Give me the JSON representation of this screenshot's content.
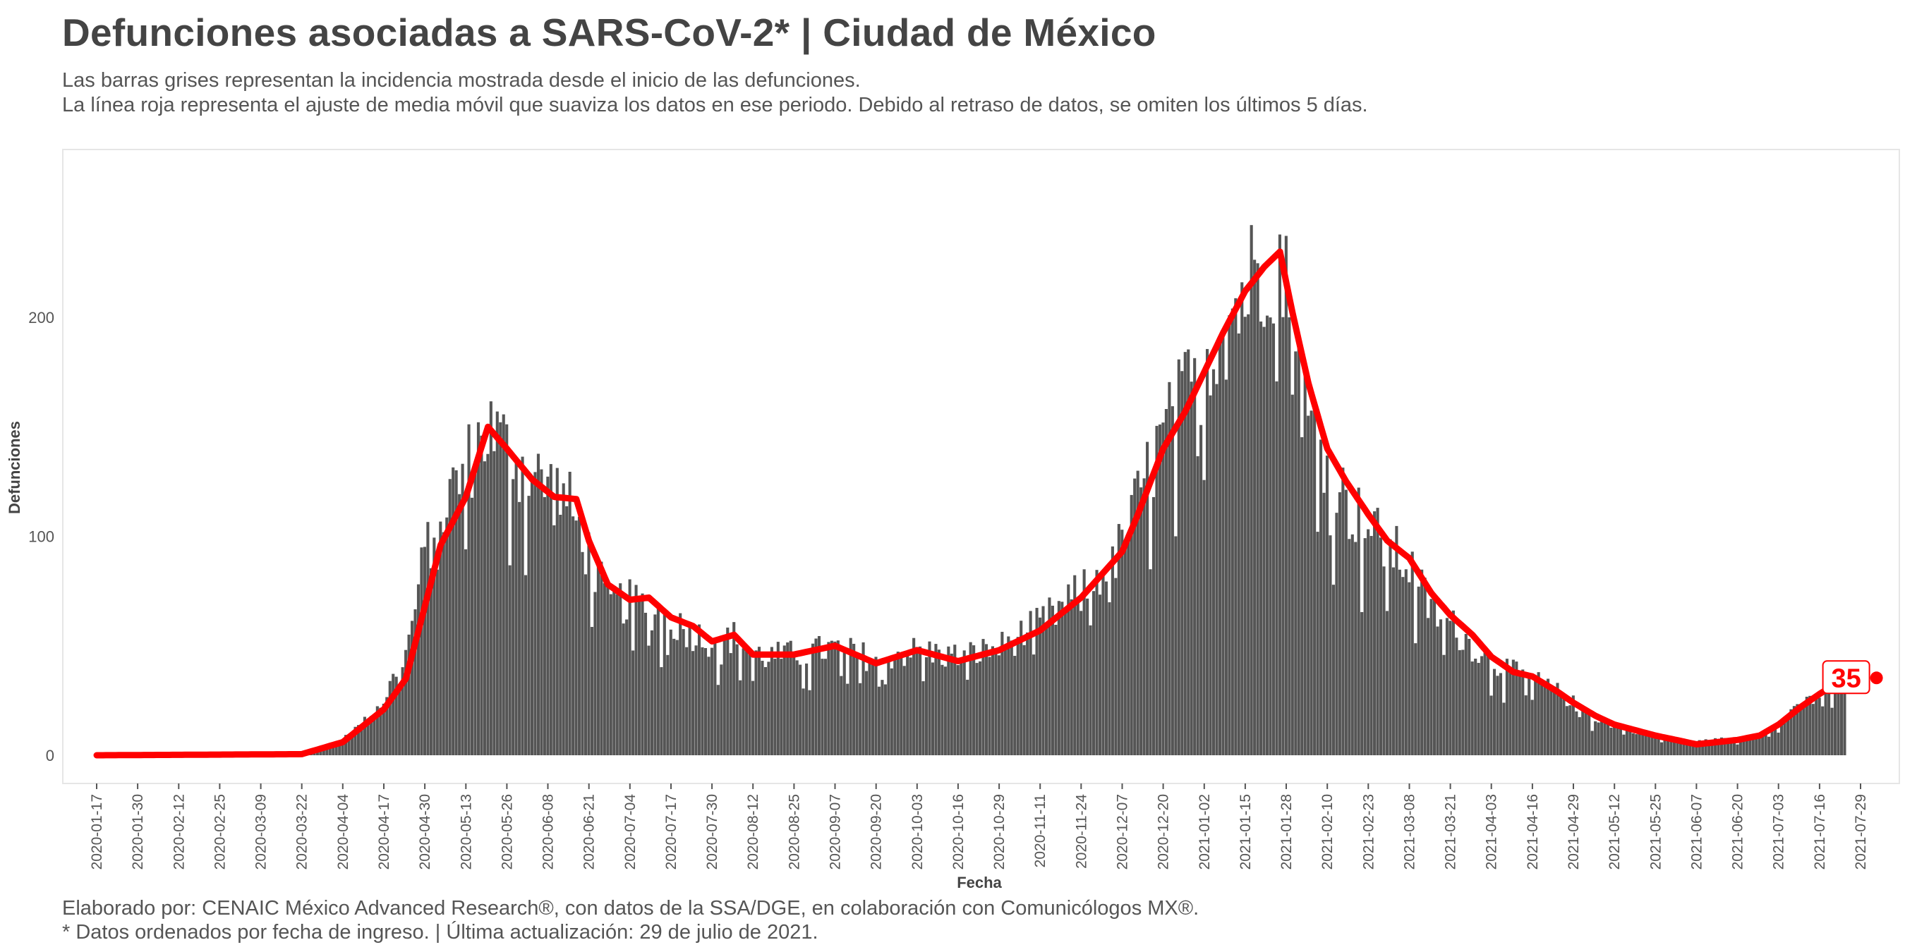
{
  "title": "Defunciones asociadas a SARS-CoV-2* | Ciudad de México",
  "subtitle_1": "Las barras grises representan la incidencia mostrada desde el inicio de las defunciones.",
  "subtitle_2": "La línea roja representa el ajuste de media móvil que suaviza los datos en ese periodo. Debido al retraso de datos, se omiten los últimos 5 días.",
  "caption_1": "Elaborado por: CENAIC México Advanced Research®, con datos de la SSA/DGE, en colaboración con Comunicólogos MX®.",
  "caption_2": "* Datos ordenados por fecha de ingreso. | Última actualización: 29 de julio de 2021.",
  "chart_data": {
    "type": "bar",
    "xlabel": "Fecha",
    "ylabel": "Defunciones",
    "ylim": [
      -12,
      265
    ],
    "y_ticks": [
      0,
      100,
      200
    ],
    "x_range": [
      "2020-01-17",
      "2021-07-29"
    ],
    "x_ticks": [
      "2020-01-17",
      "2020-01-30",
      "2020-02-12",
      "2020-02-25",
      "2020-03-09",
      "2020-03-22",
      "2020-04-04",
      "2020-04-17",
      "2020-04-30",
      "2020-05-13",
      "2020-05-26",
      "2020-06-08",
      "2020-06-21",
      "2020-07-04",
      "2020-07-17",
      "2020-07-30",
      "2020-08-12",
      "2020-08-25",
      "2020-09-07",
      "2020-09-20",
      "2020-10-03",
      "2020-10-16",
      "2020-10-29",
      "2020-11-11",
      "2020-11-24",
      "2020-12-07",
      "2020-12-20",
      "2021-01-02",
      "2021-01-15",
      "2021-01-28",
      "2021-02-10",
      "2021-02-23",
      "2021-03-08",
      "2021-03-21",
      "2021-04-03",
      "2021-04-16",
      "2021-04-29",
      "2021-05-12",
      "2021-05-25",
      "2021-06-07",
      "2021-06-20",
      "2021-07-03",
      "2021-07-16",
      "2021-07-29"
    ],
    "grid": false,
    "legend": "none",
    "bar_color": "#555555",
    "line_color": "#ff0000",
    "series": [
      {
        "kind": "bars",
        "anchors": [
          [
            "2020-01-17",
            0
          ],
          [
            "2020-03-09",
            0
          ],
          [
            "2020-03-22",
            1
          ],
          [
            "2020-04-01",
            5
          ],
          [
            "2020-04-10",
            14
          ],
          [
            "2020-04-17",
            25
          ],
          [
            "2020-04-25",
            52
          ],
          [
            "2020-04-30",
            92
          ],
          [
            "2020-05-06",
            113
          ],
          [
            "2020-05-13",
            132
          ],
          [
            "2020-05-20",
            150
          ],
          [
            "2020-05-26",
            140
          ],
          [
            "2020-06-02",
            128
          ],
          [
            "2020-06-08",
            124
          ],
          [
            "2020-06-14",
            117
          ],
          [
            "2020-06-21",
            92
          ],
          [
            "2020-06-27",
            70
          ],
          [
            "2020-07-04",
            70
          ],
          [
            "2020-07-12",
            66
          ],
          [
            "2020-07-22",
            57
          ],
          [
            "2020-07-30",
            52
          ],
          [
            "2020-08-06",
            54
          ],
          [
            "2020-08-15",
            45
          ],
          [
            "2020-08-25",
            46
          ],
          [
            "2020-09-07",
            49
          ],
          [
            "2020-09-20",
            44
          ],
          [
            "2020-10-03",
            48
          ],
          [
            "2020-10-16",
            45
          ],
          [
            "2020-10-29",
            49
          ],
          [
            "2020-11-11",
            60
          ],
          [
            "2020-11-24",
            74
          ],
          [
            "2020-12-07",
            95
          ],
          [
            "2020-12-14",
            125
          ],
          [
            "2020-12-20",
            145
          ],
          [
            "2021-01-02",
            180
          ],
          [
            "2021-01-08",
            198
          ],
          [
            "2021-01-15",
            212
          ],
          [
            "2021-01-22",
            230
          ],
          [
            "2021-01-26",
            232
          ],
          [
            "2021-01-30",
            192
          ],
          [
            "2021-02-04",
            152
          ],
          [
            "2021-02-10",
            138
          ],
          [
            "2021-02-16",
            115
          ],
          [
            "2021-02-23",
            104
          ],
          [
            "2021-03-01",
            95
          ],
          [
            "2021-03-08",
            87
          ],
          [
            "2021-03-15",
            66
          ],
          [
            "2021-03-21",
            60
          ],
          [
            "2021-03-28",
            50
          ],
          [
            "2021-04-03",
            43
          ],
          [
            "2021-04-10",
            38
          ],
          [
            "2021-04-16",
            35
          ],
          [
            "2021-04-24",
            29
          ],
          [
            "2021-04-29",
            24
          ],
          [
            "2021-05-06",
            17
          ],
          [
            "2021-05-12",
            14
          ],
          [
            "2021-05-25",
            9
          ],
          [
            "2021-06-07",
            6
          ],
          [
            "2021-06-20",
            8
          ],
          [
            "2021-06-27",
            9
          ],
          [
            "2021-07-03",
            14
          ],
          [
            "2021-07-10",
            22
          ],
          [
            "2021-07-16",
            28
          ],
          [
            "2021-07-24",
            33
          ]
        ]
      },
      {
        "kind": "moving-average",
        "points": [
          [
            "2020-01-17",
            0
          ],
          [
            "2020-03-22",
            0.5
          ],
          [
            "2020-04-04",
            6
          ],
          [
            "2020-04-17",
            21
          ],
          [
            "2020-04-24",
            35
          ],
          [
            "2020-04-30",
            68
          ],
          [
            "2020-05-05",
            96
          ],
          [
            "2020-05-13",
            118
          ],
          [
            "2020-05-20",
            150
          ],
          [
            "2020-05-26",
            140
          ],
          [
            "2020-06-03",
            126
          ],
          [
            "2020-06-10",
            118
          ],
          [
            "2020-06-17",
            117
          ],
          [
            "2020-06-21",
            98
          ],
          [
            "2020-06-27",
            78
          ],
          [
            "2020-07-04",
            71
          ],
          [
            "2020-07-10",
            72
          ],
          [
            "2020-07-17",
            63
          ],
          [
            "2020-07-24",
            59
          ],
          [
            "2020-07-30",
            52
          ],
          [
            "2020-08-06",
            55
          ],
          [
            "2020-08-12",
            46
          ],
          [
            "2020-08-25",
            46
          ],
          [
            "2020-09-07",
            50
          ],
          [
            "2020-09-20",
            42
          ],
          [
            "2020-10-03",
            48
          ],
          [
            "2020-10-16",
            43
          ],
          [
            "2020-10-29",
            48
          ],
          [
            "2020-11-11",
            57
          ],
          [
            "2020-11-24",
            72
          ],
          [
            "2020-12-07",
            93
          ],
          [
            "2020-12-12",
            110
          ],
          [
            "2020-12-20",
            140
          ],
          [
            "2020-12-27",
            157
          ],
          [
            "2021-01-02",
            175
          ],
          [
            "2021-01-08",
            193
          ],
          [
            "2021-01-15",
            212
          ],
          [
            "2021-01-21",
            223
          ],
          [
            "2021-01-26",
            230
          ],
          [
            "2021-01-30",
            202
          ],
          [
            "2021-02-04",
            170
          ],
          [
            "2021-02-10",
            140
          ],
          [
            "2021-02-16",
            125
          ],
          [
            "2021-02-23",
            110
          ],
          [
            "2021-03-01",
            98
          ],
          [
            "2021-03-08",
            90
          ],
          [
            "2021-03-15",
            74
          ],
          [
            "2021-03-21",
            64
          ],
          [
            "2021-03-28",
            55
          ],
          [
            "2021-04-03",
            45
          ],
          [
            "2021-04-10",
            38
          ],
          [
            "2021-04-16",
            36
          ],
          [
            "2021-04-24",
            29
          ],
          [
            "2021-04-29",
            24
          ],
          [
            "2021-05-06",
            18
          ],
          [
            "2021-05-12",
            14
          ],
          [
            "2021-05-25",
            9
          ],
          [
            "2021-06-07",
            5
          ],
          [
            "2021-06-20",
            7
          ],
          [
            "2021-06-27",
            9
          ],
          [
            "2021-07-03",
            14
          ],
          [
            "2021-07-10",
            22
          ],
          [
            "2021-07-16",
            28
          ],
          [
            "2021-07-24",
            35
          ]
        ]
      }
    ],
    "last_point": {
      "date": "2021-07-24",
      "value": 35,
      "label": "35"
    }
  }
}
